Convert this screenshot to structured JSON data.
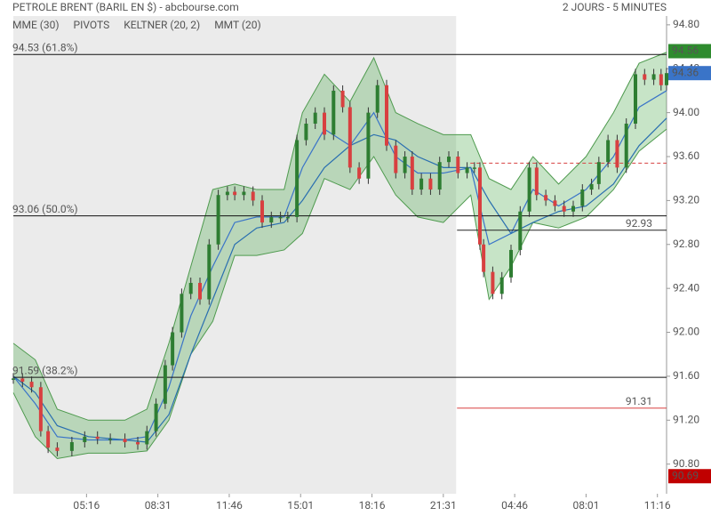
{
  "chart_data": {
    "type": "candlestick",
    "title": "PETROLE BRENT (BARIL EN $) - abcbourse.com",
    "subtitle": "2 JOURS - 5 MINUTES",
    "legend": [
      {
        "name": "MME (30)",
        "color": "#3a74c8"
      },
      {
        "name": "PIVOTS",
        "color": "#444444"
      },
      {
        "name": "KELTNER (20, 2)",
        "color": "#4e9a4e"
      },
      {
        "name": "MMT (20)",
        "color": "#2a6fb0"
      }
    ],
    "xlim": [
      0,
      357
    ],
    "xticks": [
      {
        "value": 40,
        "label": "05:16"
      },
      {
        "value": 79,
        "label": "08:31"
      },
      {
        "value": 118,
        "label": "11:46"
      },
      {
        "value": 157,
        "label": "15:01"
      },
      {
        "value": 196,
        "label": "18:16"
      },
      {
        "value": 235,
        "label": "21:31"
      },
      {
        "value": 274,
        "label": "04:46"
      },
      {
        "value": 313,
        "label": "08:01"
      },
      {
        "value": 352,
        "label": "11:16"
      }
    ],
    "ylim": [
      90.53,
      94.88
    ],
    "yticks": [
      {
        "value": 90.8,
        "label": "90.80"
      },
      {
        "value": 91.2,
        "label": "91.20"
      },
      {
        "value": 91.6,
        "label": "91.60"
      },
      {
        "value": 92,
        "label": "92.00"
      },
      {
        "value": 92.4,
        "label": "92.40"
      },
      {
        "value": 92.8,
        "label": "92.80"
      },
      {
        "value": 93.2,
        "label": "93.20"
      },
      {
        "value": 93.6,
        "label": "93.60"
      },
      {
        "value": 94,
        "label": "94.00"
      },
      {
        "value": 94.4,
        "label": "94.40"
      },
      {
        "value": 94.8,
        "label": "94.80"
      }
    ],
    "session_break": 242,
    "price": {
      "x": [
        0,
        5,
        10,
        15,
        19,
        24,
        32,
        39,
        46,
        53,
        61,
        68,
        73,
        78,
        83,
        87,
        92,
        97,
        102,
        107,
        112,
        117,
        121,
        126,
        131,
        136,
        141,
        146,
        150,
        155,
        160,
        165,
        170,
        175,
        180,
        184,
        189,
        194,
        199,
        204,
        209,
        214,
        218,
        223,
        228,
        233,
        238,
        243,
        248,
        252,
        255,
        257,
        262,
        267,
        272,
        277,
        282,
        286,
        291,
        296,
        301,
        306,
        311,
        316,
        320,
        325,
        330,
        335,
        340,
        345,
        350,
        354,
        357
      ],
      "values": [
        91.58,
        91.55,
        91.5,
        91.1,
        90.95,
        90.92,
        91.0,
        91.05,
        91.03,
        91.03,
        91.0,
        90.98,
        91.1,
        91.35,
        91.7,
        92.0,
        92.35,
        92.45,
        92.3,
        92.8,
        93.25,
        93.28,
        93.25,
        93.28,
        93.2,
        93.0,
        93.05,
        93.05,
        93.05,
        93.75,
        93.9,
        94.0,
        93.8,
        94.2,
        94.05,
        93.5,
        93.4,
        94.0,
        94.25,
        93.7,
        93.45,
        93.6,
        93.3,
        93.4,
        93.3,
        93.55,
        93.6,
        93.45,
        93.5,
        93.5,
        92.8,
        92.55,
        92.35,
        92.5,
        92.75,
        93.1,
        93.5,
        93.25,
        93.2,
        93.15,
        93.1,
        93.15,
        93.3,
        93.35,
        93.55,
        93.75,
        93.5,
        93.9,
        94.35,
        94.3,
        94.35,
        94.25,
        94.36
      ],
      "up_color": "#2e7d32",
      "down_color": "#d84040"
    },
    "indicators": {
      "x": [
        0,
        12,
        24,
        41,
        61,
        73,
        85,
        97,
        109,
        121,
        133,
        148,
        158,
        170,
        184,
        197,
        209,
        221,
        235,
        250,
        260,
        272,
        284,
        298,
        313,
        328,
        342,
        357
      ],
      "keltner_upper": [
        91.9,
        91.75,
        91.3,
        91.2,
        91.2,
        91.3,
        91.9,
        92.6,
        93.3,
        93.35,
        93.3,
        93.3,
        94.0,
        94.35,
        94.1,
        94.5,
        94.0,
        93.9,
        93.8,
        93.8,
        93.4,
        93.3,
        93.6,
        93.35,
        93.6,
        94.0,
        94.45,
        94.55
      ],
      "keltner_lower": [
        91.45,
        91.05,
        90.85,
        90.9,
        90.9,
        90.92,
        91.2,
        91.8,
        92.1,
        92.7,
        92.7,
        92.75,
        92.9,
        93.4,
        93.3,
        93.6,
        93.25,
        93.05,
        93.0,
        93.25,
        92.3,
        92.6,
        93.0,
        92.95,
        93.05,
        93.3,
        93.65,
        93.85
      ],
      "mme": [
        91.6,
        91.35,
        91.05,
        91.02,
        91.02,
        91.05,
        91.5,
        92.15,
        92.6,
        93.0,
        93.05,
        93.05,
        93.5,
        93.85,
        93.7,
        94.0,
        93.6,
        93.45,
        93.45,
        93.5,
        92.8,
        92.9,
        93.3,
        93.15,
        93.3,
        93.6,
        94.05,
        94.2
      ],
      "mmt": [
        91.6,
        91.45,
        91.15,
        91.05,
        91.02,
        91.0,
        91.25,
        91.8,
        92.3,
        92.8,
        92.95,
        93.0,
        93.2,
        93.5,
        93.7,
        93.8,
        93.75,
        93.6,
        93.5,
        93.5,
        93.2,
        92.9,
        93.0,
        93.1,
        93.15,
        93.35,
        93.7,
        93.95
      ]
    },
    "fib_levels": [
      {
        "price": 94.53,
        "label": "94.53 (61.8%)"
      },
      {
        "price": 93.06,
        "label": "93.06 (50.0%)"
      },
      {
        "price": 91.59,
        "label": "91.59 (38.2%)"
      }
    ],
    "pivots": [
      {
        "price": 92.93,
        "label": "92.93",
        "color": "#222222"
      },
      {
        "price": 91.31,
        "label": "91.31",
        "color": "#d84040"
      }
    ],
    "pivot_dashed": 93.54,
    "badges": [
      {
        "value": 94.56,
        "color": "#2e8b2e"
      },
      {
        "value": 94.36,
        "color": "#3a74c8"
      },
      {
        "value": 90.69,
        "color": "#c00000"
      }
    ]
  }
}
